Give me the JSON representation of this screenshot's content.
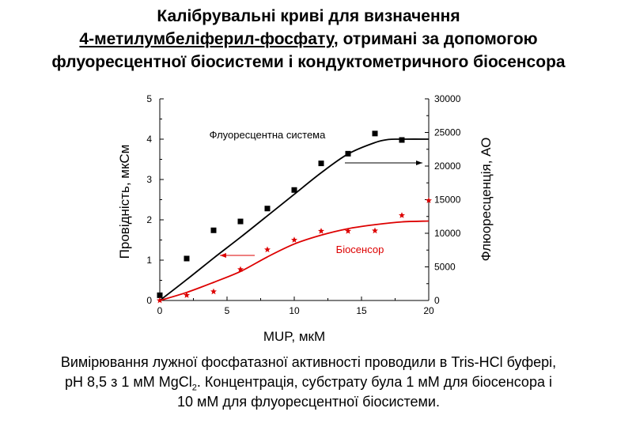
{
  "slide": {
    "title_line1": "Калібрувальні криві для визначення",
    "title_line2_underlined": "4-метилумбеліферил-фосфату",
    "title_line2_rest": ", отримані за допомогою",
    "title_line3": "флуоресцентної біосистеми і кондуктометричного біосенсора",
    "caption_line1": "Вимірювання лужної фосфатазної активності проводили в Tris-HCl буфері,",
    "caption_line2_a": "рН 8,5 з 1 мМ MgCl",
    "caption_line2_sub": "2",
    "caption_line2_b": ". Концентрація, субстрату була 1 мМ для біосенсора і",
    "caption_line3": "10 мМ для флуоресцентної  біосистеми."
  },
  "chart_data": {
    "type": "scatter",
    "xlabel": "MUP, мкМ",
    "ylabel_left": "Провідність, мкСм",
    "ylabel_right": "Флюоресценція, АО",
    "xlim": [
      0,
      20
    ],
    "ylim_left": [
      0,
      5
    ],
    "ylim_right": [
      0,
      30000
    ],
    "x_ticks": [
      "0",
      "5",
      "10",
      "15",
      "20"
    ],
    "y_left_ticks": [
      "0",
      "1",
      "2",
      "3",
      "4",
      "5"
    ],
    "y_right_ticks": [
      "0",
      "5000",
      "10000",
      "15000",
      "20000",
      "25000",
      "30000"
    ],
    "series": [
      {
        "name": "Флуоресцентна система",
        "marker": "square",
        "color": "#000000",
        "axis": "right",
        "points": [
          [
            0,
            780
          ],
          [
            2,
            6240
          ],
          [
            4,
            10440
          ],
          [
            6,
            11760
          ],
          [
            8,
            13680
          ],
          [
            10,
            16440
          ],
          [
            12,
            20400
          ],
          [
            14,
            21840
          ],
          [
            16,
            24840
          ],
          [
            18,
            23880
          ]
        ],
        "fit": [
          [
            0,
            0
          ],
          [
            2,
            3100
          ],
          [
            4,
            6300
          ],
          [
            6,
            9400
          ],
          [
            8,
            12600
          ],
          [
            10,
            15800
          ],
          [
            12,
            19000
          ],
          [
            14,
            21800
          ],
          [
            16,
            23500
          ],
          [
            17,
            23950
          ],
          [
            18,
            24000
          ],
          [
            20,
            24000
          ]
        ]
      },
      {
        "name": "Біосенсор",
        "marker": "star",
        "color": "#dd0000",
        "axis": "left",
        "points": [
          [
            0,
            0.0
          ],
          [
            2,
            0.13
          ],
          [
            4,
            0.22
          ],
          [
            6,
            0.77
          ],
          [
            8,
            1.26
          ],
          [
            10,
            1.5
          ],
          [
            12,
            1.72
          ],
          [
            14,
            1.72
          ],
          [
            16,
            1.73
          ],
          [
            18,
            2.11
          ],
          [
            20,
            2.48
          ]
        ],
        "fit": [
          [
            0,
            0.0
          ],
          [
            2,
            0.2
          ],
          [
            4,
            0.45
          ],
          [
            6,
            0.72
          ],
          [
            8,
            1.08
          ],
          [
            10,
            1.4
          ],
          [
            12,
            1.62
          ],
          [
            14,
            1.78
          ],
          [
            16,
            1.88
          ],
          [
            18,
            1.95
          ],
          [
            20,
            1.97
          ]
        ]
      }
    ],
    "annotations": [
      {
        "text": "Флуоресцентна система",
        "color": "#000000",
        "arrow": "right-axis"
      },
      {
        "text": "Біосенсор",
        "color": "#dd0000",
        "arrow": "left-axis"
      }
    ]
  }
}
